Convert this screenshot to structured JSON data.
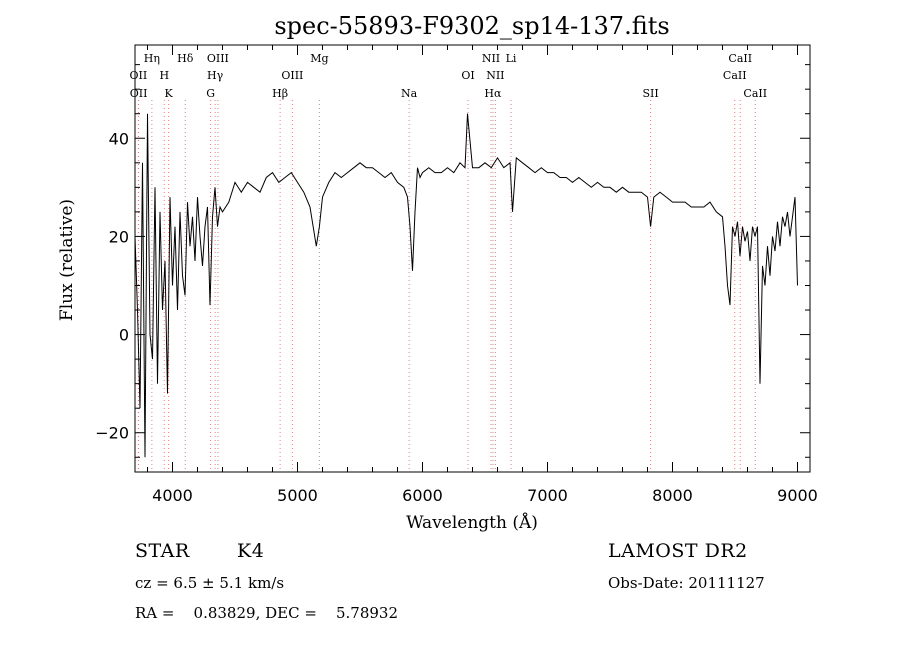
{
  "chart_data": {
    "type": "line",
    "title": "spec-55893-F9302_sp14-137.fits",
    "xlabel": "Wavelength (Å)",
    "ylabel": "Flux (relative)",
    "xlim": [
      3700,
      9100
    ],
    "ylim": [
      -28,
      59
    ],
    "xticks": [
      4000,
      5000,
      6000,
      7000,
      8000,
      9000
    ],
    "yticks": [
      -20,
      0,
      20,
      40
    ],
    "grid": false,
    "line_color": "#000000",
    "marker_color": "#e08080",
    "spectral_lines": [
      {
        "name": "OII",
        "x": 3727,
        "row": 1
      },
      {
        "name": "OII",
        "x": 3729,
        "row": 2
      },
      {
        "name": "Hη",
        "x": 3835,
        "row": 0
      },
      {
        "name": "H",
        "x": 3934,
        "row": 1
      },
      {
        "name": "K",
        "x": 3969,
        "row": 2
      },
      {
        "name": "Hδ",
        "x": 4102,
        "row": 0
      },
      {
        "name": "OIII",
        "x": 4363,
        "row": 0
      },
      {
        "name": "Hγ",
        "x": 4341,
        "row": 1
      },
      {
        "name": "G",
        "x": 4305,
        "row": 2
      },
      {
        "name": "OIII",
        "x": 4959,
        "row": 1
      },
      {
        "name": "Hβ",
        "x": 4861,
        "row": 2
      },
      {
        "name": "Mg",
        "x": 5175,
        "row": 0
      },
      {
        "name": "Na",
        "x": 5893,
        "row": 2
      },
      {
        "name": "OI",
        "x": 6364,
        "row": 1
      },
      {
        "name": "NII",
        "x": 6548,
        "row": 0
      },
      {
        "name": "NII",
        "x": 6583,
        "row": 1
      },
      {
        "name": "Hα",
        "x": 6563,
        "row": 2
      },
      {
        "name": "Li",
        "x": 6708,
        "row": 0
      },
      {
        "name": "SII",
        "x": 7825,
        "row": 2
      },
      {
        "name": "CaII",
        "x": 8498,
        "row": 1
      },
      {
        "name": "CaII",
        "x": 8542,
        "row": 0
      },
      {
        "name": "CaII",
        "x": 8662,
        "row": 2
      }
    ],
    "series": [
      {
        "x": [
          3700,
          3720,
          3740,
          3760,
          3780,
          3800,
          3820,
          3840,
          3860,
          3880,
          3900,
          3920,
          3940,
          3960,
          3980,
          4000,
          4020,
          4040,
          4060,
          4080,
          4100,
          4120,
          4140,
          4160,
          4180,
          4200,
          4220,
          4240,
          4260,
          4280,
          4300,
          4320,
          4340,
          4360,
          4380,
          4400,
          4450,
          4500,
          4550,
          4600,
          4650,
          4700,
          4750,
          4800,
          4850,
          4900,
          4950,
          5000,
          5050,
          5100,
          5150,
          5175,
          5200,
          5250,
          5300,
          5350,
          5400,
          5450,
          5500,
          5550,
          5600,
          5650,
          5700,
          5750,
          5800,
          5850,
          5880,
          5900,
          5920,
          5940,
          5960,
          5980,
          6000,
          6050,
          6100,
          6150,
          6200,
          6250,
          6300,
          6340,
          6360,
          6400,
          6450,
          6500,
          6550,
          6600,
          6650,
          6700,
          6720,
          6750,
          6800,
          6850,
          6900,
          6950,
          7000,
          7050,
          7100,
          7150,
          7200,
          7250,
          7300,
          7350,
          7400,
          7450,
          7500,
          7550,
          7600,
          7650,
          7700,
          7750,
          7800,
          7825,
          7850,
          7900,
          7950,
          8000,
          8050,
          8100,
          8150,
          8200,
          8250,
          8300,
          8350,
          8400,
          8420,
          8440,
          8460,
          8480,
          8500,
          8520,
          8540,
          8560,
          8580,
          8600,
          8620,
          8640,
          8660,
          8680,
          8700,
          8720,
          8740,
          8760,
          8780,
          8800,
          8820,
          8840,
          8860,
          8880,
          8900,
          8920,
          8940,
          8960,
          8980,
          9000
        ],
        "y": [
          20,
          5,
          -15,
          35,
          -25,
          45,
          0,
          -5,
          30,
          -10,
          25,
          5,
          15,
          -12,
          28,
          10,
          22,
          5,
          25,
          12,
          8,
          27,
          18,
          24,
          15,
          28,
          20,
          14,
          22,
          26,
          6,
          24,
          30,
          22,
          26,
          25,
          27,
          31,
          29,
          31,
          30,
          29,
          32,
          33,
          31,
          32,
          33,
          31,
          29,
          26,
          18,
          22,
          28,
          31,
          33,
          32,
          33,
          34,
          35,
          34,
          34,
          33,
          32,
          33,
          31,
          30,
          28,
          22,
          13,
          25,
          34,
          32,
          33,
          34,
          33,
          33,
          34,
          33,
          35,
          34,
          45,
          34,
          34,
          35,
          34,
          36,
          34,
          35,
          25,
          36,
          35,
          34,
          33,
          34,
          33,
          33,
          32,
          32,
          31,
          32,
          31,
          30,
          31,
          30,
          30,
          29,
          30,
          29,
          29,
          29,
          28,
          22,
          28,
          29,
          28,
          27,
          27,
          27,
          26,
          26,
          26,
          27,
          25,
          24,
          18,
          10,
          6,
          22,
          20,
          23,
          16,
          22,
          19,
          21,
          15,
          22,
          20,
          22,
          -10,
          14,
          10,
          18,
          12,
          20,
          17,
          23,
          18,
          24,
          22,
          25,
          20,
          24,
          28,
          10
        ]
      }
    ]
  },
  "info": {
    "object_class": "STAR",
    "subclass": "K4",
    "survey": "LAMOST DR2",
    "redshift": "cz = 6.5 ± 5.1 km/s",
    "obs_date": "Obs-Date: 20111127",
    "coords": "RA =    0.83829, DEC =    5.78932"
  }
}
